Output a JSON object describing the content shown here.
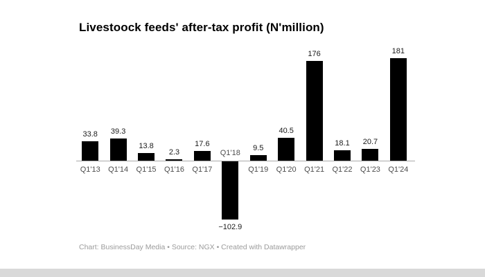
{
  "chart_data": {
    "type": "bar",
    "title": "Livestoock feeds' after-tax profit (N'million)",
    "categories": [
      "Q1'13",
      "Q1'14",
      "Q1'15",
      "Q1'16",
      "Q1'17",
      "Q1'18",
      "Q1'19",
      "Q1'20",
      "Q1'21",
      "Q1'22",
      "Q1'23",
      "Q1'24"
    ],
    "values": [
      33.8,
      39.3,
      13.8,
      2.3,
      17.6,
      -102.9,
      9.5,
      40.5,
      176,
      18.1,
      20.7,
      181
    ],
    "value_labels": [
      "33.8",
      "39.3",
      "13.8",
      "2.3",
      "17.6",
      "−102.9",
      "9.5",
      "40.5",
      "176",
      "18.1",
      "20.7",
      "181"
    ],
    "xlabel": "",
    "ylabel": "",
    "ylim": [
      -110,
      190
    ],
    "bar_color": "#000000",
    "grid": false,
    "legend": "none",
    "footer": "Chart: BusinessDay Media • Source: NGX • Created with Datawrapper"
  }
}
